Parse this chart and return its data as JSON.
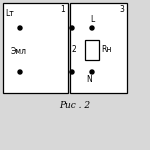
{
  "title": "Рис . 2",
  "bg_color": "#d8d8d8",
  "line_color": "#000000",
  "label1": "1",
  "label2": "2",
  "label3": "3",
  "labelLT": "Lт",
  "labelEml": "Эмл",
  "labelL": "L",
  "labelN": "N",
  "labelRH": "Rн"
}
